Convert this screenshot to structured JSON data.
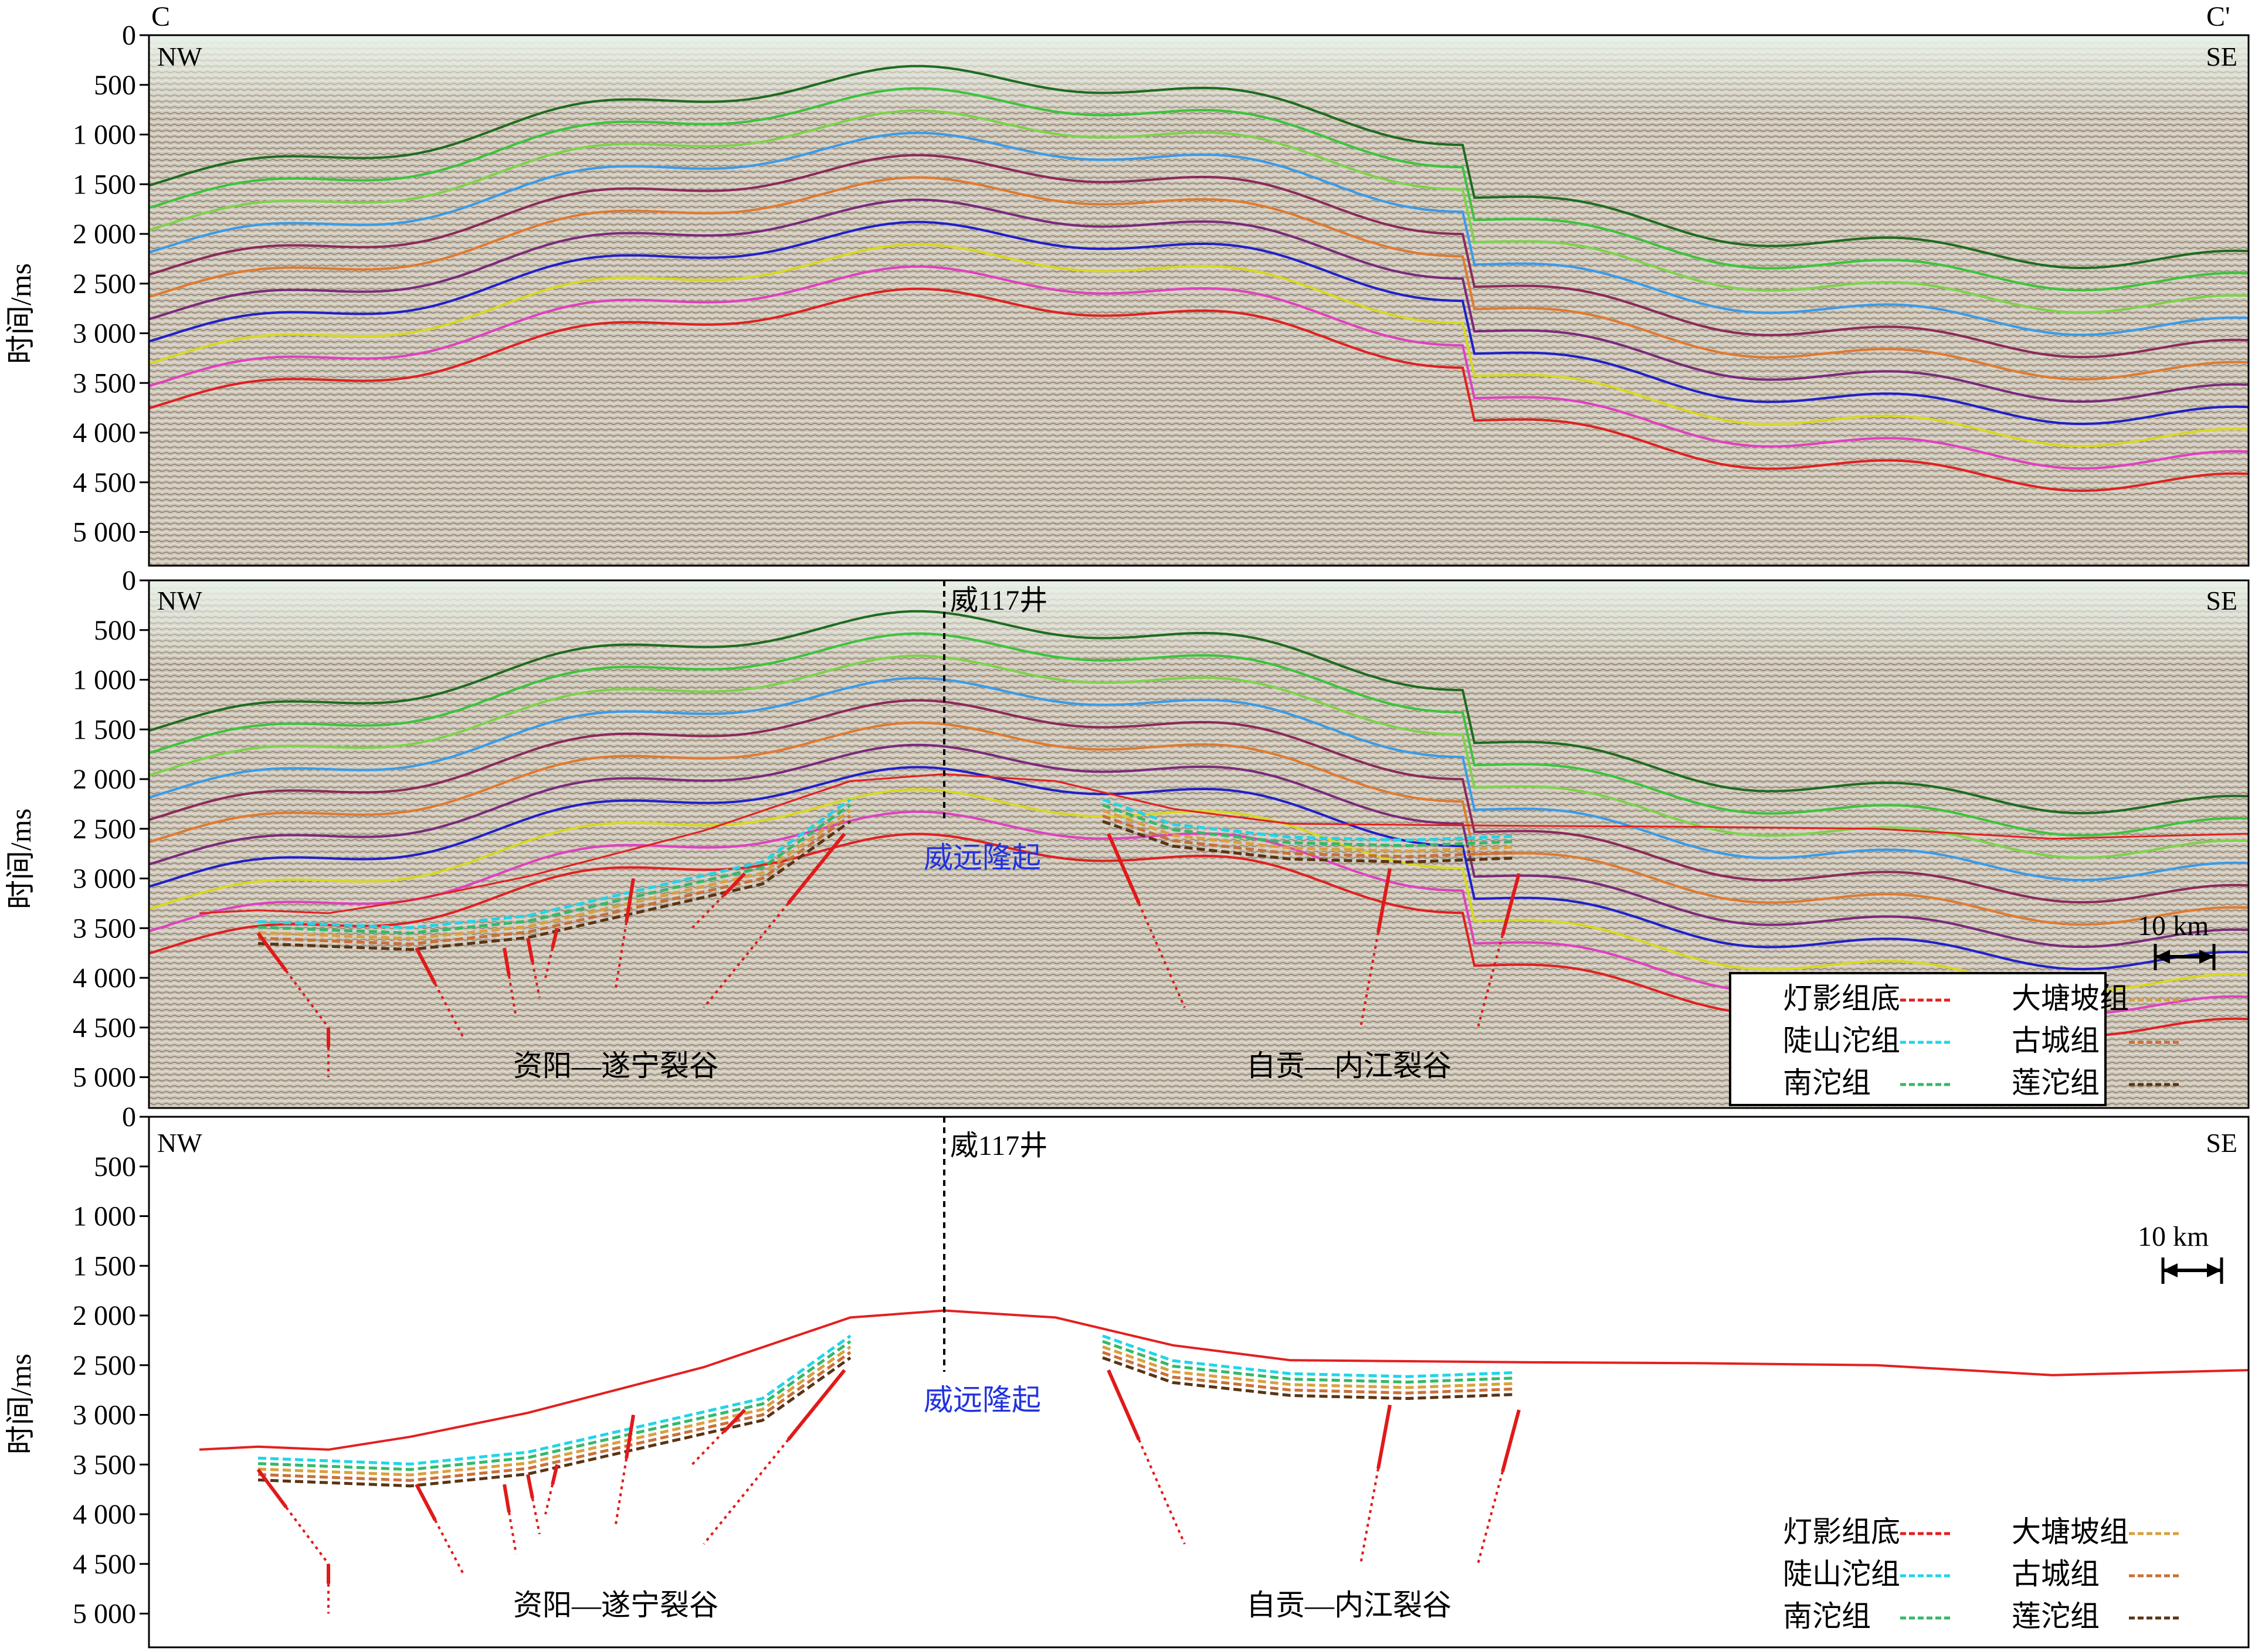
{
  "figure": {
    "corner_left": "C",
    "corner_right": "C'",
    "dir_left": "NW",
    "dir_right": "SE",
    "y_axis_title": "时间/ms",
    "well_label": "威117井",
    "uplift_label": "威远隆起",
    "rift_1": "资阳—遂宁裂谷",
    "rift_2": "自贡—内江裂谷",
    "scale_bar": "10 km"
  },
  "panels": [
    {
      "id": "top",
      "kind": "seismic-uninterpreted"
    },
    {
      "id": "middle",
      "kind": "seismic-interpreted"
    },
    {
      "id": "bottom",
      "kind": "line-drawing"
    }
  ],
  "y_ticks": [
    "0",
    "500",
    "1 000",
    "1 500",
    "2 000",
    "2 500",
    "3 000",
    "3 500",
    "4 000",
    "4 500",
    "5 000"
  ],
  "legend": {
    "items": [
      {
        "label": "灯影组底",
        "color": "#e32020",
        "style": "dashed"
      },
      {
        "label": "陡山沱组",
        "color": "#22d4e8",
        "style": "dashed"
      },
      {
        "label": "南沱组",
        "color": "#35b86a",
        "style": "dashed"
      },
      {
        "label": "大塘坡组",
        "color": "#d9a040",
        "style": "dashed"
      },
      {
        "label": "古城组",
        "color": "#c8703a",
        "style": "dashed"
      },
      {
        "label": "莲沱组",
        "color": "#5a3414",
        "style": "dashed"
      }
    ]
  },
  "colors": {
    "fault": "#e01a1a",
    "seismic_bg": "#cfc9bd",
    "seismic_top": "#e7efe6",
    "uplift_text": "#2233dd"
  }
}
